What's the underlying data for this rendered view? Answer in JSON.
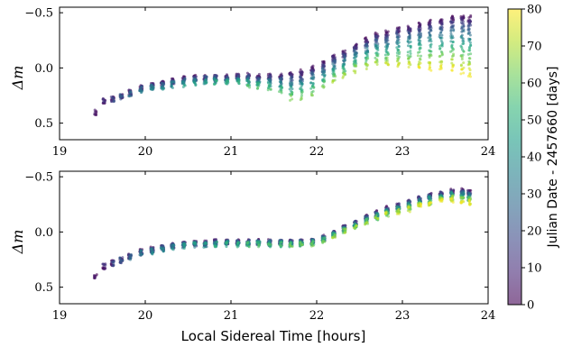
{
  "chart_data": [
    {
      "type": "scatter",
      "panel": "top",
      "xlabel": "",
      "ylabel": "Δm",
      "xlim": [
        19,
        24
      ],
      "ylim": [
        0.65,
        -0.55
      ],
      "x_ticks": [
        19,
        20,
        21,
        22,
        23,
        24
      ],
      "x_tick_labels": [
        "19",
        "20",
        "21",
        "22",
        "23",
        "24"
      ],
      "y_ticks": [
        -0.5,
        0.0,
        0.5
      ],
      "y_tick_labels": [
        "−0.5",
        "0.0",
        "0.5"
      ],
      "lst_samples": [
        19.42,
        19.52,
        19.62,
        19.72,
        19.82,
        19.95,
        20.08,
        20.2,
        20.32,
        20.45,
        20.58,
        20.7,
        20.82,
        20.95,
        21.08,
        21.2,
        21.32,
        21.45,
        21.58,
        21.7,
        21.82,
        21.95,
        22.08,
        22.2,
        22.32,
        22.45,
        22.58,
        22.7,
        22.82,
        22.95,
        23.08,
        23.2,
        23.32,
        23.45,
        23.58,
        23.7,
        23.78
      ],
      "baseline_dm": [
        0.4,
        0.3,
        0.28,
        0.25,
        0.22,
        0.18,
        0.16,
        0.14,
        0.12,
        0.1,
        0.09,
        0.08,
        0.08,
        0.08,
        0.07,
        0.07,
        0.07,
        0.07,
        0.07,
        0.06,
        0.04,
        0.0,
        -0.04,
        -0.1,
        -0.14,
        -0.2,
        -0.25,
        -0.3,
        -0.32,
        -0.35,
        -0.37,
        -0.39,
        -0.41,
        -0.43,
        -0.46,
        -0.46,
        -0.45
      ],
      "late_shift_dm": [
        0.05,
        0.05,
        0.05,
        0.06,
        0.06,
        0.06,
        0.07,
        0.08,
        0.09,
        0.1,
        0.1,
        0.1,
        0.1,
        0.1,
        0.12,
        0.13,
        0.15,
        0.18,
        0.22,
        0.28,
        0.3,
        0.3,
        0.28,
        0.26,
        0.26,
        0.27,
        0.28,
        0.3,
        0.32,
        0.35,
        0.38,
        0.4,
        0.42,
        0.44,
        0.48,
        0.5,
        0.52
      ],
      "nights_jd": [
        0,
        3,
        6,
        9,
        13,
        17,
        21,
        25,
        30,
        35,
        40,
        46,
        52,
        58,
        64,
        70,
        75,
        79
      ],
      "night_start_lst": [
        19.4,
        19.4,
        19.4,
        19.45,
        19.5,
        19.6,
        19.6,
        19.7,
        19.8,
        19.9,
        20.0,
        20.4,
        20.8,
        21.2,
        21.6,
        22.2,
        22.8,
        23.1
      ],
      "point_size": "small",
      "alpha": 0.6,
      "colormap": "viridis"
    },
    {
      "type": "scatter",
      "panel": "bottom",
      "xlabel": "Local Sidereal Time [hours]",
      "ylabel": "Δm",
      "xlim": [
        19,
        24
      ],
      "ylim": [
        0.65,
        -0.55
      ],
      "x_ticks": [
        19,
        20,
        21,
        22,
        23,
        24
      ],
      "x_tick_labels": [
        "19",
        "20",
        "21",
        "22",
        "23",
        "24"
      ],
      "y_ticks": [
        -0.5,
        0.0,
        0.5
      ],
      "y_tick_labels": [
        "−0.5",
        "0.0",
        "0.5"
      ],
      "lst_samples": [
        19.42,
        19.52,
        19.62,
        19.72,
        19.82,
        19.95,
        20.08,
        20.2,
        20.32,
        20.45,
        20.58,
        20.7,
        20.82,
        20.95,
        21.08,
        21.2,
        21.32,
        21.45,
        21.58,
        21.7,
        21.82,
        21.95,
        22.08,
        22.2,
        22.32,
        22.45,
        22.58,
        22.7,
        22.82,
        22.95,
        23.08,
        23.2,
        23.32,
        23.45,
        23.58,
        23.7,
        23.78
      ],
      "baseline_dm": [
        0.4,
        0.31,
        0.28,
        0.25,
        0.22,
        0.18,
        0.16,
        0.14,
        0.12,
        0.11,
        0.1,
        0.1,
        0.09,
        0.09,
        0.09,
        0.09,
        0.09,
        0.09,
        0.09,
        0.09,
        0.09,
        0.08,
        0.05,
        0.01,
        -0.04,
        -0.08,
        -0.13,
        -0.17,
        -0.21,
        -0.24,
        -0.27,
        -0.3,
        -0.33,
        -0.35,
        -0.37,
        -0.37,
        -0.36
      ],
      "late_shift_dm": [
        0.04,
        0.04,
        0.04,
        0.04,
        0.04,
        0.04,
        0.04,
        0.04,
        0.04,
        0.04,
        0.04,
        0.04,
        0.04,
        0.04,
        0.04,
        0.04,
        0.04,
        0.04,
        0.04,
        0.04,
        0.04,
        0.04,
        0.04,
        0.04,
        0.04,
        0.05,
        0.05,
        0.06,
        0.06,
        0.06,
        0.07,
        0.07,
        0.08,
        0.08,
        0.08,
        0.09,
        0.1
      ],
      "nights_jd": [
        0,
        3,
        6,
        9,
        13,
        17,
        21,
        25,
        30,
        35,
        40,
        46,
        52,
        58,
        64,
        70,
        75,
        79
      ],
      "night_start_lst": [
        19.4,
        19.4,
        19.4,
        19.45,
        19.5,
        19.6,
        19.6,
        19.7,
        19.8,
        19.9,
        20.0,
        20.4,
        20.8,
        21.2,
        21.6,
        22.2,
        22.8,
        23.1
      ],
      "point_size": "small",
      "alpha": 0.6,
      "colormap": "viridis"
    }
  ],
  "colorbar": {
    "label": "Julian Date - 2457660 [days]",
    "range": [
      0,
      80
    ],
    "ticks": [
      0,
      10,
      20,
      30,
      40,
      50,
      60,
      70,
      80
    ],
    "tick_labels": [
      "0",
      "10",
      "20",
      "30",
      "40",
      "50",
      "60",
      "70",
      "80"
    ],
    "colormap": "viridis",
    "alpha": 0.6
  },
  "colors": {
    "viridis": [
      "#440154",
      "#482878",
      "#3e4989",
      "#31688e",
      "#26828e",
      "#1f9e89",
      "#35b779",
      "#6ece58",
      "#b5de2b",
      "#fde725"
    ]
  }
}
